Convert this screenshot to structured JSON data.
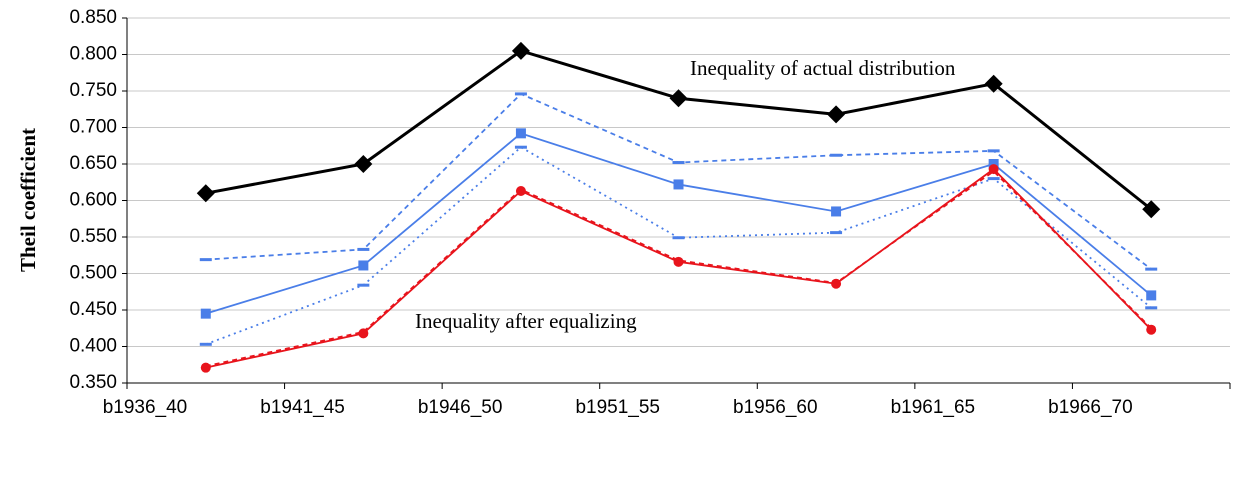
{
  "chart_data": {
    "type": "line",
    "y_label": "Theil coefficient",
    "categories": [
      "b1936_40",
      "b1941_45",
      "b1946_50",
      "b1951_55",
      "b1956_60",
      "b1961_65",
      "b1966_70"
    ],
    "series": [
      {
        "color": "#000000",
        "style": "solid",
        "marker": "diamond",
        "values": [
          0.61,
          0.65,
          0.805,
          0.74,
          0.718,
          0.76,
          0.588
        ]
      },
      {
        "color": "#4a7ee8",
        "style": "dashed",
        "marker": "dash",
        "values": [
          0.519,
          0.533,
          0.746,
          0.652,
          0.662,
          0.668,
          0.506
        ]
      },
      {
        "color": "#4a7ee8",
        "style": "solid",
        "marker": "square",
        "values": [
          0.445,
          0.511,
          0.692,
          0.622,
          0.585,
          0.65,
          0.47
        ]
      },
      {
        "color": "#4a7ee8",
        "style": "dotted",
        "marker": "dash",
        "values": [
          0.403,
          0.484,
          0.673,
          0.549,
          0.556,
          0.63,
          0.453
        ]
      },
      {
        "color": "#e8141c",
        "style": "dashed",
        "marker": "none",
        "values": [
          0.373,
          0.42,
          0.615,
          0.518,
          0.487,
          0.64,
          0.425
        ]
      },
      {
        "color": "#e8141c",
        "style": "solid",
        "marker": "circle",
        "values": [
          0.371,
          0.418,
          0.613,
          0.516,
          0.486,
          0.643,
          0.423
        ]
      }
    ],
    "annotations": [
      "Inequality of actual distribution",
      "Inequality after equalizing"
    ],
    "ylim": [
      0.35,
      0.85
    ],
    "yticks": [
      {
        "value": 0.35,
        "label": "0.350"
      },
      {
        "value": 0.4,
        "label": "0.400"
      },
      {
        "value": 0.45,
        "label": "0.450"
      },
      {
        "value": 0.5,
        "label": "0.500"
      },
      {
        "value": 0.55,
        "label": "0.550"
      },
      {
        "value": 0.6,
        "label": "0.600"
      },
      {
        "value": 0.65,
        "label": "0.650"
      },
      {
        "value": 0.7,
        "label": "0.700"
      },
      {
        "value": 0.75,
        "label": "0.750"
      },
      {
        "value": 0.8,
        "label": "0.800"
      },
      {
        "value": 0.85,
        "label": "0.850"
      }
    ],
    "grid": true
  }
}
